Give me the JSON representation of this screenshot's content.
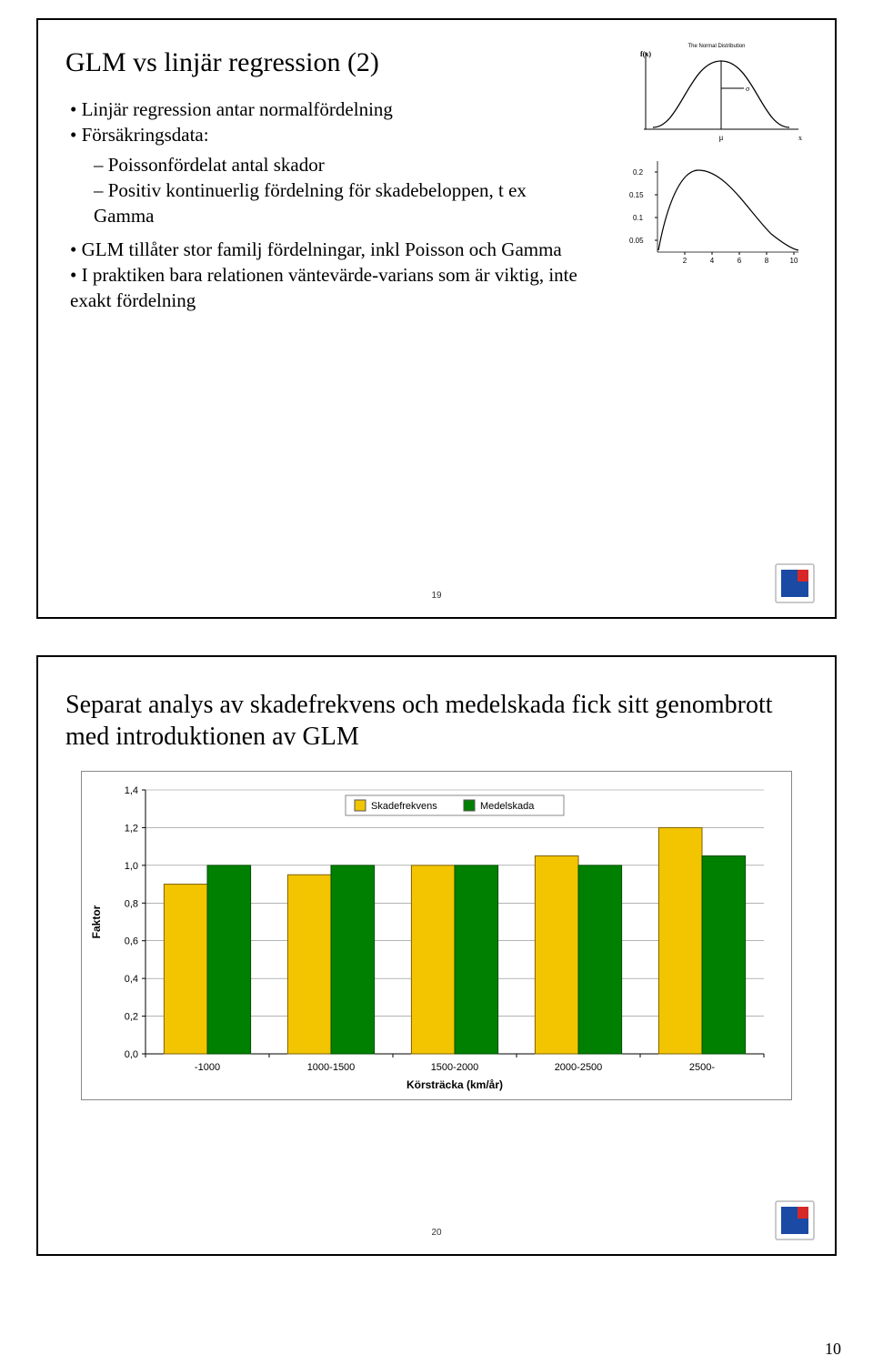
{
  "page_number": "10",
  "slide1": {
    "title": "GLM vs linjär regression (2)",
    "b1": "Linjär regression antar normalfördelning",
    "b2": "Försäkringsdata:",
    "b2a": "Poissonfördelat antal skador",
    "b2b": "Positiv kontinuerlig fördelning för skadebeloppen, t ex Gamma",
    "b3": "GLM tillåter stor familj fördelningar, inkl Poisson och Gamma",
    "b4": "I praktiken bara relationen väntevärde-varians som är viktig, inte exakt fördelning",
    "slide_no": "19",
    "normal_curve": {
      "title": "The Normal Distribution",
      "mu_label": "μ",
      "sigma_label": "σ",
      "color": "#000000"
    },
    "gamma_curve": {
      "y_ticks": [
        "0.2",
        "0.15",
        "0.1",
        "0.05"
      ],
      "x_ticks": [
        "2",
        "4",
        "6",
        "8",
        "10"
      ],
      "color": "#000000"
    }
  },
  "slide2": {
    "title": "Separat analys av skadefrekvens och medelskada fick sitt genombrott med introduktionen av GLM",
    "slide_no": "20",
    "chart": {
      "type": "bar",
      "y_label": "Faktor",
      "y_label_fontsize": 12,
      "x_label": "Körsträcka (km/år)",
      "x_label_fontsize": 12,
      "legend": [
        {
          "label": "Skadefrekvens",
          "color": "#f2c500"
        },
        {
          "label": "Medelskada",
          "color": "#008000"
        }
      ],
      "categories": [
        "-1000",
        "1000-1500",
        "1500-2000",
        "2000-2500",
        "2500-"
      ],
      "series": [
        {
          "name": "Skadefrekvens",
          "color": "#f2c500",
          "border": "#806000",
          "values": [
            0.9,
            0.95,
            1.0,
            1.05,
            1.2
          ]
        },
        {
          "name": "Medelskada",
          "color": "#008000",
          "border": "#004d00",
          "values": [
            1.0,
            1.0,
            1.0,
            1.0,
            1.05
          ]
        }
      ],
      "ylim": [
        0.0,
        1.4
      ],
      "ytick_step": 0.2,
      "y_ticks": [
        "0,0",
        "0,2",
        "0,4",
        "0,6",
        "0,8",
        "1,0",
        "1,2",
        "1,4"
      ],
      "bar_width": 0.35,
      "background": "#ffffff",
      "grid_color": "#888888",
      "legend_border": "#888888",
      "legend_bg": "#ffffff",
      "tick_font": 11
    }
  },
  "logo": {
    "bg": "#ffffff",
    "border": "#b9b9b9",
    "blue": "#1a4aa3",
    "red": "#d62828"
  }
}
